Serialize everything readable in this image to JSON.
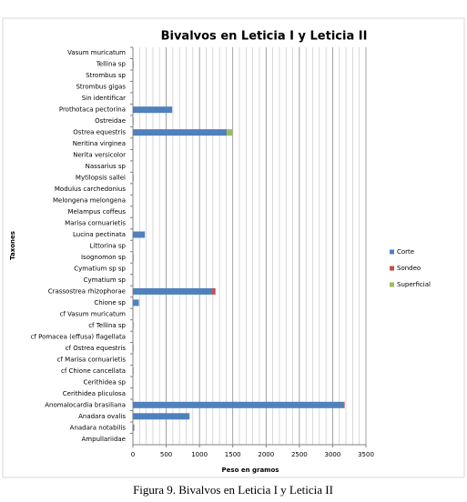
{
  "chart_data": {
    "type": "stacked_bar_horizontal",
    "title": "Bivalvos en Leticia I y Leticia II",
    "x_label": "Peso en gramos",
    "y_label": "Taxones",
    "caption": "Figura 9. Bivalvos en Leticia I y Leticia II",
    "categories": [
      "Vasum muricatum",
      "Tellina sp",
      "Strombus sp",
      "Strombus gigas",
      "Sin identificar",
      "Prothotaca pectorina",
      "Ostreidae",
      "Ostrea equestris",
      "Neritina virginea",
      "Nerita versicolor",
      "Nassarius sp",
      "Mytilopsis sallei",
      "Modulus carchedonius",
      "Melongena melongena",
      "Melampus coffeus",
      "Marisa cornuarietis",
      "Lucina pectinata",
      "Littorina sp",
      "Isognomon sp",
      "Cymatium sp sp",
      "Cymatium sp",
      "Crassostrea rhizophorae",
      "Chione sp",
      "cf Vasum muricatum",
      "cf Tellina sp",
      "cf Pomacea (effusa) flagellata",
      "cf Ostrea equestris",
      "cf Marisa cornuarietis",
      "cf Chione cancellata",
      "Cerithidea sp",
      "Cerithidea pliculosa",
      "Anomalocardia brasiliana",
      "Anadara ovalis",
      "Anadara notabilis",
      "Ampullariidae"
    ],
    "series": [
      {
        "name": "Corte",
        "color": "#4f81bd",
        "values": [
          0,
          10,
          0,
          0,
          0,
          590,
          10,
          1410,
          0,
          0,
          0,
          10,
          0,
          0,
          0,
          0,
          180,
          0,
          10,
          0,
          0,
          1190,
          90,
          0,
          10,
          0,
          10,
          0,
          10,
          0,
          0,
          3160,
          850,
          20,
          0
        ]
      },
      {
        "name": "Sondeo",
        "color": "#c0504d",
        "values": [
          0,
          0,
          0,
          0,
          0,
          0,
          0,
          0,
          0,
          0,
          0,
          0,
          0,
          0,
          0,
          0,
          0,
          0,
          0,
          0,
          0,
          50,
          0,
          0,
          0,
          0,
          0,
          0,
          0,
          0,
          0,
          20,
          0,
          0,
          0
        ]
      },
      {
        "name": "Superficial",
        "color": "#9bbb59",
        "values": [
          0,
          0,
          0,
          0,
          0,
          0,
          0,
          80,
          0,
          0,
          0,
          0,
          0,
          0,
          0,
          0,
          0,
          0,
          0,
          0,
          0,
          0,
          0,
          0,
          0,
          0,
          0,
          0,
          0,
          0,
          0,
          0,
          0,
          0,
          0
        ]
      }
    ],
    "xlim": [
      0,
      3500
    ],
    "xticks": [
      0,
      500,
      1000,
      1500,
      2000,
      2500,
      3000,
      3500
    ],
    "grid": true,
    "legend": "right"
  }
}
